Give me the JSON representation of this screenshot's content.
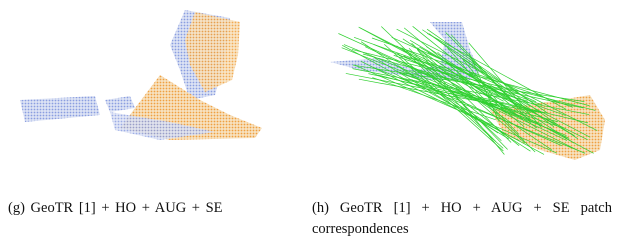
{
  "figures": [
    {
      "caption": "(g) GeoTR [1] + HO + AUG + SE"
    },
    {
      "caption": "(h) GeoTR [1] + HO + AUG + SE patch correspondences"
    }
  ]
}
